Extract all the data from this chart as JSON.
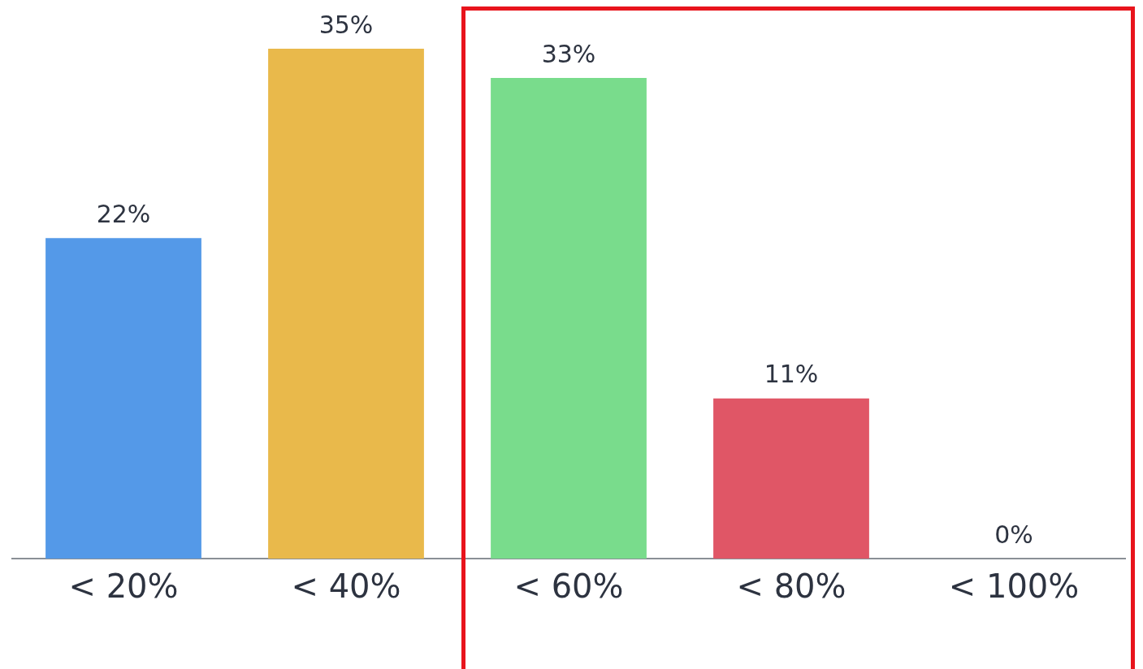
{
  "chart_data": {
    "type": "bar",
    "categories": [
      "< 20%",
      "< 40%",
      "< 60%",
      "< 80%",
      "< 100%"
    ],
    "values": [
      22,
      35,
      33,
      11,
      0
    ],
    "colors": [
      "#5499e8",
      "#e9b94b",
      "#79dc8c",
      "#e05666",
      "#9aa0a6"
    ],
    "value_labels": [
      "22%",
      "35%",
      "33%",
      "11%",
      "0%"
    ],
    "grid": false,
    "legend": false
  }
}
